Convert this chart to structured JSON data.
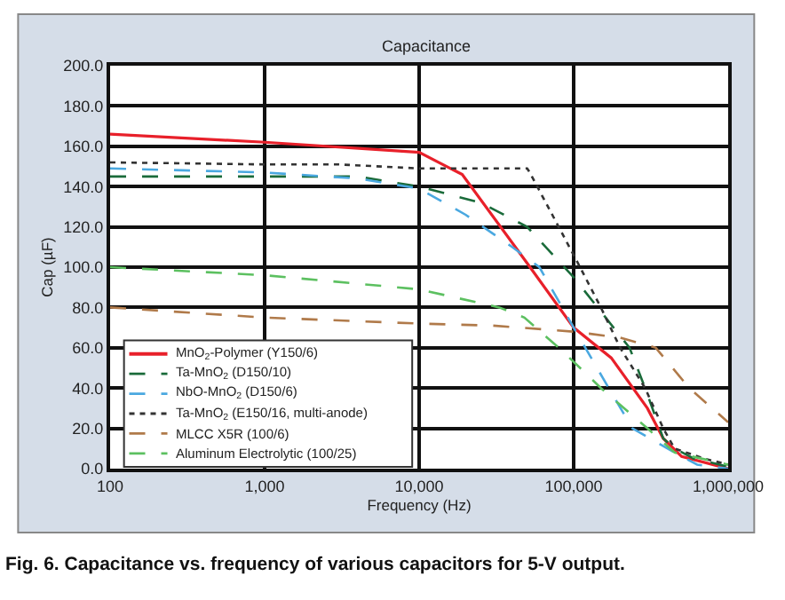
{
  "chart_data": {
    "type": "line",
    "title": "Capacitance",
    "xlabel": "Frequency (Hz)",
    "ylabel": "Cap (µF)",
    "log": "x",
    "grid": true,
    "legend": "bottom left",
    "marker": "none",
    "xlim": [
      100,
      1000000
    ],
    "xticks": [
      {
        "value": 100,
        "label": "100"
      },
      {
        "value": 1000,
        "label": "1,000"
      },
      {
        "value": 10000,
        "label": "10,000"
      },
      {
        "value": 100000,
        "label": "100,000"
      },
      {
        "value": 1000000,
        "label": "1,000,000"
      }
    ],
    "ylim": [
      0,
      200
    ],
    "yticks": [
      {
        "value": 0,
        "label": "0.0"
      },
      {
        "value": 20,
        "label": "20.0"
      },
      {
        "value": 40,
        "label": "40.0"
      },
      {
        "value": 60,
        "label": "60.0"
      },
      {
        "value": 80,
        "label": "80.0"
      },
      {
        "value": 100,
        "label": "100.0"
      },
      {
        "value": 120,
        "label": "120.0"
      },
      {
        "value": 140,
        "label": "140.0"
      },
      {
        "value": 160,
        "label": "160.0"
      },
      {
        "value": 180,
        "label": "180.0"
      },
      {
        "value": 200,
        "label": "200.0"
      }
    ],
    "annotations": [
      "Fig. 6. Capacitance vs. frequency of various capacitors for 5-V output."
    ],
    "series": [
      {
        "name": "MnO$_{2}$-Polymer (Y150/6)",
        "color": "#e8202a",
        "line_style": "solid",
        "x": [
          100,
          1000,
          10000,
          19000,
          50000,
          100000,
          175000,
          300000,
          380000,
          500000,
          1000000
        ],
        "values": [
          166,
          162,
          157,
          146,
          102,
          70,
          55,
          30,
          15,
          6,
          0
        ]
      },
      {
        "name": "Ta-MnO$_{2}$ (D150/10)",
        "color": "#1a6b3a",
        "line_style": "dashed",
        "x": [
          100,
          1000,
          4000,
          10000,
          25000,
          50000,
          100000,
          230000,
          290000,
          380000,
          450000,
          600000,
          1000000
        ],
        "values": [
          145,
          145,
          145,
          140,
          132,
          120,
          95,
          60,
          40,
          15,
          10,
          5,
          1
        ]
      },
      {
        "name": "NbO-MnO$_{2}$ (D150/6)",
        "color": "#4aa8e0",
        "line_style": "dashed",
        "x": [
          100,
          1000,
          4000,
          10000,
          20000,
          40000,
          60000,
          100000,
          160000,
          240000,
          450000,
          630000,
          1000000
        ],
        "values": [
          149,
          147,
          144,
          139,
          126,
          110,
          100,
          70,
          43,
          20,
          8,
          2,
          0
        ]
      },
      {
        "name": "Ta-MnO$_{2}$ (E150/16, multi-anode)",
        "color": "#333333",
        "line_style": "dotted",
        "x": [
          100,
          1000,
          3000,
          10000,
          50000,
          52000,
          80000,
          110000,
          150000,
          200000,
          290000,
          380000,
          450000,
          700000,
          1000000
        ],
        "values": [
          152,
          151,
          151,
          149,
          149,
          147,
          120,
          100,
          80,
          60,
          40,
          20,
          10,
          5,
          2
        ]
      },
      {
        "name": "MLCC X5R (100/6)",
        "color": "#b07a4a",
        "line_style": "dashed",
        "x": [
          100,
          1000,
          10000,
          30000,
          100000,
          200000,
          340000,
          560000,
          1000000
        ],
        "values": [
          80,
          75,
          72,
          71,
          68,
          65,
          60,
          40,
          23
        ]
      },
      {
        "name": "Aluminum Electrolytic (100/25)",
        "color": "#5cc060",
        "line_style": "dashed",
        "x": [
          100,
          1000,
          10000,
          33000,
          48000,
          80000,
          110000,
          150000,
          300000,
          450000,
          1000000
        ],
        "values": [
          100,
          96,
          89,
          80,
          75,
          60,
          50,
          40,
          20,
          8,
          2
        ]
      }
    ]
  }
}
